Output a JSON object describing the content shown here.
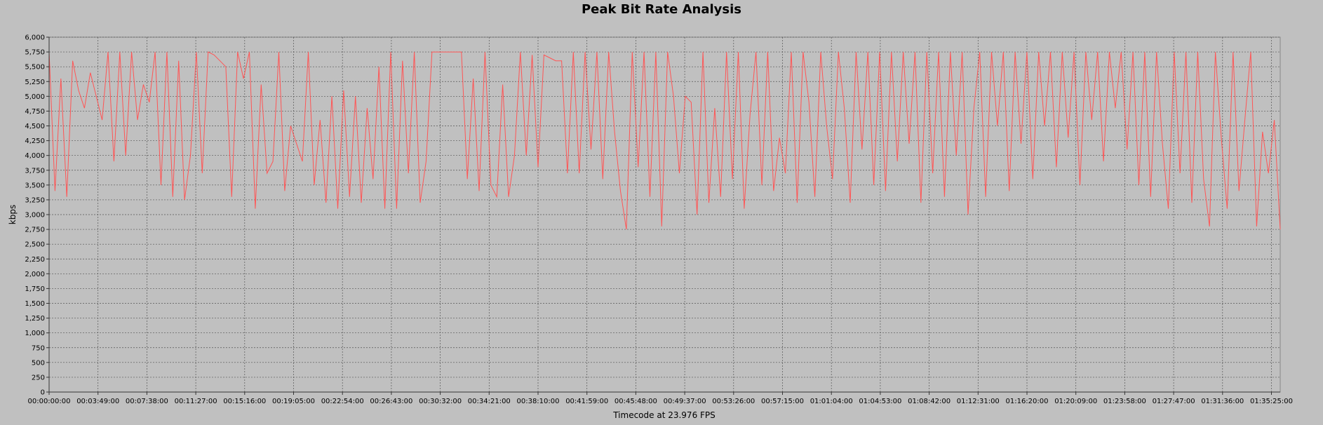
{
  "chart_data": {
    "type": "line",
    "title": "Peak Bit Rate Analysis",
    "xlabel": "Timecode at 23.976 FPS",
    "ylabel": "kbps",
    "ylim": [
      0,
      6000
    ],
    "yticks": [
      0,
      250,
      500,
      750,
      1000,
      1250,
      1500,
      1750,
      2000,
      2250,
      2500,
      2750,
      3000,
      3250,
      3500,
      3750,
      4000,
      4250,
      4500,
      4750,
      5000,
      5250,
      5500,
      5750,
      6000
    ],
    "ytick_labels": [
      "0",
      "250",
      "500",
      "750",
      "1,000",
      "1,250",
      "1,500",
      "1,750",
      "2,000",
      "2,250",
      "2,500",
      "2,750",
      "3,000",
      "3,250",
      "3,500",
      "3,750",
      "4,000",
      "4,250",
      "4,500",
      "4,750",
      "5,000",
      "5,250",
      "5,500",
      "5,750",
      "6,000"
    ],
    "xticks": [
      "00:00:00:00",
      "00:03:49:00",
      "00:07:38:00",
      "00:11:27:00",
      "00:15:16:00",
      "00:19:05:00",
      "00:22:54:00",
      "00:26:43:00",
      "00:30:32:00",
      "00:34:21:00",
      "00:38:10:00",
      "00:41:59:00",
      "00:45:48:00",
      "00:49:37:00",
      "00:53:26:00",
      "00:57:15:00",
      "01:01:04:00",
      "01:04:53:00",
      "01:08:42:00",
      "01:12:31:00",
      "01:16:20:00",
      "01:20:09:00",
      "01:23:58:00",
      "01:27:47:00",
      "01:31:36:00",
      "01:35:25:00"
    ],
    "grid": true,
    "line_color": "#ff5555",
    "series": [
      {
        "points": [
          [
            0,
            5750
          ],
          [
            1,
            3400
          ],
          [
            2,
            5300
          ],
          [
            3,
            3300
          ],
          [
            4,
            5600
          ],
          [
            5,
            5100
          ],
          [
            6,
            4800
          ],
          [
            7,
            5400
          ],
          [
            8,
            5000
          ],
          [
            9,
            4600
          ],
          [
            10,
            5750
          ],
          [
            11,
            3900
          ],
          [
            12,
            5750
          ],
          [
            13,
            4000
          ],
          [
            14,
            5750
          ],
          [
            15,
            4600
          ],
          [
            16,
            5200
          ],
          [
            17,
            4900
          ],
          [
            18,
            5750
          ],
          [
            19,
            3500
          ],
          [
            20,
            5750
          ],
          [
            21,
            3300
          ],
          [
            22,
            5600
          ],
          [
            23,
            3250
          ],
          [
            24,
            4000
          ],
          [
            25,
            5750
          ],
          [
            26,
            3700
          ],
          [
            27,
            5750
          ],
          [
            28,
            5700
          ],
          [
            29,
            5600
          ],
          [
            30,
            5500
          ],
          [
            31,
            3300
          ],
          [
            32,
            5750
          ],
          [
            33,
            5300
          ],
          [
            34,
            5750
          ],
          [
            35,
            3100
          ],
          [
            36,
            5200
          ],
          [
            37,
            3700
          ],
          [
            38,
            3900
          ],
          [
            39,
            5750
          ],
          [
            40,
            3400
          ],
          [
            41,
            4500
          ],
          [
            42,
            4200
          ],
          [
            43,
            3900
          ],
          [
            44,
            5750
          ],
          [
            45,
            3500
          ],
          [
            46,
            4600
          ],
          [
            47,
            3200
          ],
          [
            48,
            5000
          ],
          [
            49,
            3100
          ],
          [
            50,
            5100
          ],
          [
            51,
            3300
          ],
          [
            52,
            5000
          ],
          [
            53,
            3200
          ],
          [
            54,
            4800
          ],
          [
            55,
            3600
          ],
          [
            56,
            5500
          ],
          [
            57,
            3100
          ],
          [
            58,
            5750
          ],
          [
            59,
            3100
          ],
          [
            60,
            5600
          ],
          [
            61,
            3700
          ],
          [
            62,
            5750
          ],
          [
            63,
            3200
          ],
          [
            64,
            3900
          ],
          [
            65,
            5750
          ],
          [
            66,
            5750
          ],
          [
            67,
            5750
          ],
          [
            68,
            5750
          ],
          [
            69,
            5750
          ],
          [
            70,
            5750
          ],
          [
            71,
            3600
          ],
          [
            72,
            5300
          ],
          [
            73,
            3400
          ],
          [
            74,
            5750
          ],
          [
            75,
            3500
          ],
          [
            76,
            3300
          ],
          [
            77,
            5200
          ],
          [
            78,
            3300
          ],
          [
            79,
            4000
          ],
          [
            80,
            5750
          ],
          [
            81,
            4000
          ],
          [
            82,
            5700
          ],
          [
            83,
            3800
          ],
          [
            84,
            5700
          ],
          [
            85,
            5650
          ],
          [
            86,
            5600
          ],
          [
            87,
            5600
          ],
          [
            88,
            3700
          ],
          [
            89,
            5750
          ],
          [
            90,
            3700
          ],
          [
            91,
            5750
          ],
          [
            92,
            4100
          ],
          [
            93,
            5750
          ],
          [
            94,
            3600
          ],
          [
            95,
            5750
          ],
          [
            96,
            4400
          ],
          [
            97,
            3400
          ],
          [
            98,
            2750
          ],
          [
            99,
            5750
          ],
          [
            100,
            3800
          ],
          [
            101,
            5750
          ],
          [
            102,
            3300
          ],
          [
            103,
            5750
          ],
          [
            104,
            2800
          ],
          [
            105,
            5750
          ],
          [
            106,
            5000
          ],
          [
            107,
            3700
          ],
          [
            108,
            5000
          ],
          [
            109,
            4900
          ],
          [
            110,
            3000
          ],
          [
            111,
            5750
          ],
          [
            112,
            3200
          ],
          [
            113,
            4800
          ],
          [
            114,
            3300
          ],
          [
            115,
            5750
          ],
          [
            116,
            3600
          ],
          [
            117,
            5750
          ],
          [
            118,
            3100
          ],
          [
            119,
            4700
          ],
          [
            120,
            5750
          ],
          [
            121,
            3500
          ],
          [
            122,
            5750
          ],
          [
            123,
            3400
          ],
          [
            124,
            4300
          ],
          [
            125,
            3700
          ],
          [
            126,
            5750
          ],
          [
            127,
            3200
          ],
          [
            128,
            5750
          ],
          [
            129,
            4900
          ],
          [
            130,
            3300
          ],
          [
            131,
            5750
          ],
          [
            132,
            4500
          ],
          [
            133,
            3600
          ],
          [
            134,
            5750
          ],
          [
            135,
            4800
          ],
          [
            136,
            3200
          ],
          [
            137,
            5750
          ],
          [
            138,
            4100
          ],
          [
            139,
            5750
          ],
          [
            140,
            3500
          ],
          [
            141,
            5750
          ],
          [
            142,
            3400
          ],
          [
            143,
            5750
          ],
          [
            144,
            3900
          ],
          [
            145,
            5750
          ],
          [
            146,
            4200
          ],
          [
            147,
            5750
          ],
          [
            148,
            3200
          ],
          [
            149,
            5750
          ],
          [
            150,
            3700
          ],
          [
            151,
            5750
          ],
          [
            152,
            3300
          ],
          [
            153,
            5750
          ],
          [
            154,
            4000
          ],
          [
            155,
            5750
          ],
          [
            156,
            3000
          ],
          [
            157,
            4800
          ],
          [
            158,
            5750
          ],
          [
            159,
            3300
          ],
          [
            160,
            5750
          ],
          [
            161,
            4500
          ],
          [
            162,
            5750
          ],
          [
            163,
            3400
          ],
          [
            164,
            5750
          ],
          [
            165,
            4200
          ],
          [
            166,
            5750
          ],
          [
            167,
            3600
          ],
          [
            168,
            5750
          ],
          [
            169,
            4500
          ],
          [
            170,
            5750
          ],
          [
            171,
            3800
          ],
          [
            172,
            5750
          ],
          [
            173,
            4300
          ],
          [
            174,
            5750
          ],
          [
            175,
            3500
          ],
          [
            176,
            5750
          ],
          [
            177,
            4600
          ],
          [
            178,
            5750
          ],
          [
            179,
            3900
          ],
          [
            180,
            5750
          ],
          [
            181,
            4800
          ],
          [
            182,
            5750
          ],
          [
            183,
            4100
          ],
          [
            184,
            5750
          ],
          [
            185,
            3500
          ],
          [
            186,
            5750
          ],
          [
            187,
            3300
          ],
          [
            188,
            5750
          ],
          [
            189,
            4200
          ],
          [
            190,
            3100
          ],
          [
            191,
            5750
          ],
          [
            192,
            3700
          ],
          [
            193,
            5750
          ],
          [
            194,
            3200
          ],
          [
            195,
            5750
          ],
          [
            196,
            3600
          ],
          [
            197,
            2800
          ],
          [
            198,
            5750
          ],
          [
            199,
            4300
          ],
          [
            200,
            3100
          ],
          [
            201,
            5750
          ],
          [
            202,
            3400
          ],
          [
            203,
            4600
          ],
          [
            204,
            5750
          ],
          [
            205,
            2800
          ],
          [
            206,
            4400
          ],
          [
            207,
            3700
          ],
          [
            208,
            4600
          ],
          [
            209,
            2750
          ]
        ]
      }
    ]
  }
}
